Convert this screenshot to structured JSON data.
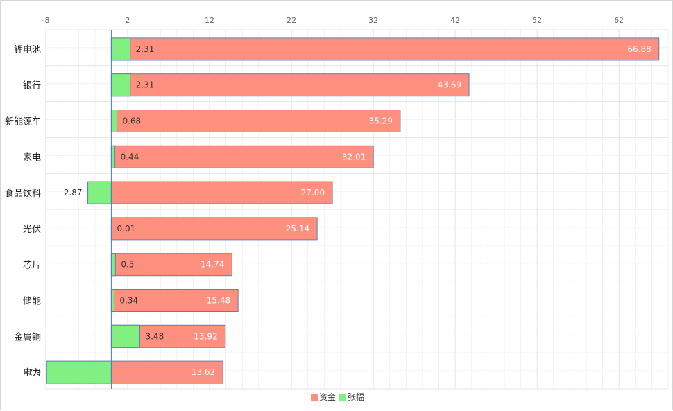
{
  "chart_data": {
    "type": "bar",
    "orientation": "horizontal",
    "xlim": [
      -8,
      68
    ],
    "x_ticks": [
      -8,
      2,
      12,
      22,
      32,
      42,
      52,
      62
    ],
    "grid": true,
    "legend_position": "bottom",
    "categories": [
      "锂电池",
      "银行",
      "新能源车",
      "家电",
      "食品饮料",
      "光伏",
      "芯片",
      "储能",
      "金属铜",
      "电力"
    ],
    "series": [
      {
        "name": "资金",
        "color": "#ff9080",
        "values": [
          66.88,
          43.69,
          35.29,
          32.01,
          27.0,
          25.14,
          14.74,
          15.48,
          13.92,
          13.62
        ],
        "labels": [
          "66.88",
          "43.69",
          "35.29",
          "32.01",
          "27.00",
          "25.14",
          "14.74",
          "15.48",
          "13.92",
          "13.62"
        ]
      },
      {
        "name": "张幅",
        "color": "#80f080",
        "values": [
          2.31,
          2.31,
          0.68,
          0.44,
          -2.87,
          0.01,
          0.5,
          0.34,
          3.48,
          -7.9
        ],
        "labels": [
          "2.31",
          "2.31",
          "0.68",
          "0.44",
          "-2.87",
          "0.01",
          "0.5",
          "0.34",
          "3.48",
          "-7.9"
        ]
      }
    ]
  }
}
